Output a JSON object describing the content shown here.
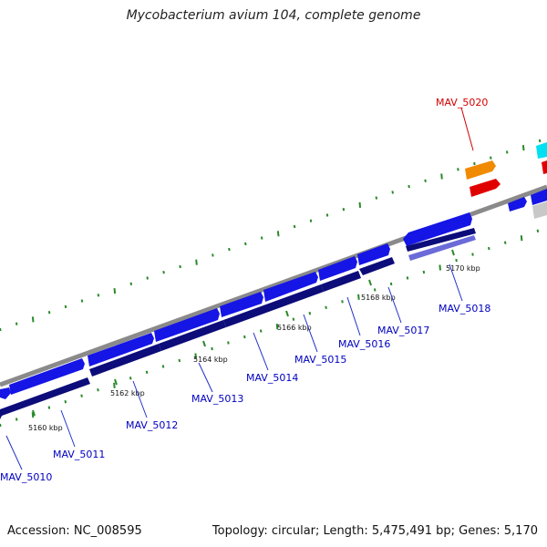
{
  "title": "Mycobacterium avium 104, complete genome",
  "footer": {
    "accession": "Accession: NC_008595",
    "summary": "Topology: circular; Length: 5,475,491 bp; Genes: 5,170"
  },
  "colors": {
    "backbone": "#8a8a8a",
    "gene_forward": "#1515e6",
    "gene_reverse": "#0c0c7a",
    "gene_other_reverse": "#6a6ad8",
    "highlight_orange": "#f08a00",
    "highlight_red": "#e00000",
    "cyan": "#00e0f0",
    "grey_feature": "#c8c8c8",
    "tick_dots": "#2a8a2a",
    "label_blue": "#0000c0",
    "label_red": "#d00000"
  },
  "ticks": [
    "5160 kbp",
    "5162 kbp",
    "5164 kbp",
    "5166 kbp",
    "5168 kbp",
    "5170 kbp"
  ],
  "genes": [
    "MAV_5010",
    "MAV_5011",
    "MAV_5012",
    "MAV_5013",
    "MAV_5014",
    "MAV_5015",
    "MAV_5016",
    "MAV_5017",
    "MAV_5018",
    "MAV_5020"
  ]
}
